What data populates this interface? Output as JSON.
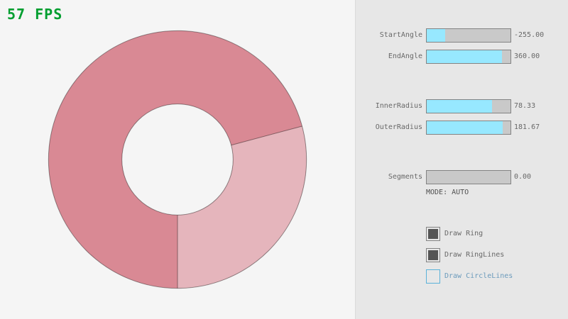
{
  "hud": {
    "fps_label": "57 FPS"
  },
  "panel": {
    "sliders": [
      {
        "id": "start-angle",
        "label": "StartAngle",
        "value": "-255.00",
        "fraction": 0.2167
      },
      {
        "id": "end-angle",
        "label": "EndAngle",
        "value": "360.00",
        "fraction": 0.9
      },
      {
        "id": "inner-radius",
        "label": "InnerRadius",
        "value": "78.33",
        "fraction": 0.7833
      },
      {
        "id": "outer-radius",
        "label": "OuterRadius",
        "value": "181.67",
        "fraction": 0.9083
      },
      {
        "id": "segments",
        "label": "Segments",
        "value": "0.00",
        "fraction": 0.0
      }
    ],
    "mode_label": "MODE: AUTO",
    "checkboxes": [
      {
        "label": "Draw Ring",
        "checked": true,
        "focused": false
      },
      {
        "label": "Draw RingLines",
        "checked": true,
        "focused": false
      },
      {
        "label": "Draw CircleLines",
        "checked": false,
        "focused": true
      }
    ]
  },
  "ring": {
    "start_angle": -255,
    "end_angle": 360,
    "inner_radius": 78.33,
    "outer_radius": 181.67,
    "segments": 0,
    "single_color": "#e5b5bc",
    "overlap_color": "#d98994",
    "outline_color": "rgba(0,0,0,0.4)"
  },
  "colors": {
    "fps_green": "#009e2f",
    "accent_fill": "#97e8ff",
    "slider_track": "#c9c9c9",
    "border": "#838383",
    "text": "#686868",
    "focused_border": "#5bb2d9",
    "focused_text": "#6c9bbc",
    "check_fill": "#555555",
    "panel_bg": "#e7e7e7",
    "canvas_bg": "#f5f5f5"
  }
}
